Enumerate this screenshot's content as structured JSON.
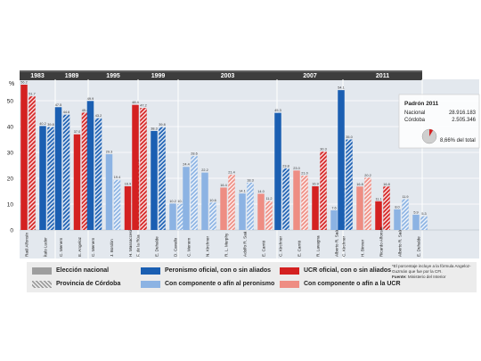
{
  "chart_data": {
    "type": "bar",
    "ylabel": "%",
    "ylim": [
      0,
      60
    ],
    "yticks": [
      0,
      10,
      20,
      30,
      40,
      50
    ],
    "periods": [
      {
        "year": "1983",
        "bars": [
          {
            "label": "Raúl Alfonsín",
            "nacional": 56.2,
            "cordoba": 51.7,
            "color_key": "ucr_oficial"
          },
          {
            "label": "Ítalo Luder",
            "nacional": 40.2,
            "cordoba": 39.8,
            "color_key": "peronismo_oficial"
          }
        ]
      },
      {
        "year": "1989",
        "bars": [
          {
            "label": "C. Menem",
            "nacional": 47.5,
            "cordoba": 44.6,
            "color_key": "peronismo_oficial"
          },
          {
            "label": "E. Angeloz",
            "nacional": 37.0,
            "cordoba": 45.4,
            "color_key": "ucr_oficial"
          }
        ]
      },
      {
        "year": "1995",
        "bars": [
          {
            "label": "C. Menem",
            "nacional": 49.9,
            "cordoba": 43.2,
            "color_key": "peronismo_oficial"
          },
          {
            "label": "J. Bordón",
            "nacional": 29.3,
            "cordoba": 19.4,
            "color_key": "afin_peronismo"
          },
          {
            "label": "H. Massaccesi",
            "nacional": 16.9,
            "cordoba": 25.8,
            "color_key": "ucr_oficial"
          }
        ]
      },
      {
        "year": "1999",
        "bars": [
          {
            "label": "F. de la Rúa",
            "nacional": 48.4,
            "cordoba": 47.2,
            "color_key": "ucr_oficial"
          },
          {
            "label": "E. Duhalde",
            "nacional": 38.3,
            "cordoba": 39.8,
            "color_key": "peronismo_oficial"
          },
          {
            "label": "D. Cavallo",
            "nacional": 10.2,
            "cordoba": 10.1,
            "color_key": "afin_peronismo"
          }
        ]
      },
      {
        "year": "2003",
        "bars": [
          {
            "label": "C. Menem",
            "nacional": 24.4,
            "cordoba": 28.6,
            "color_key": "afin_peronismo"
          },
          {
            "label": "N. Kirchner",
            "nacional": 22.2,
            "cordoba": 10.6,
            "color_key": "afin_peronismo"
          },
          {
            "label": "R. L. Murphy",
            "nacional": 16.4,
            "cordoba": 21.4,
            "color_key": "afin_ucr"
          },
          {
            "label": "Adolfo R. Saá",
            "nacional": 14.1,
            "cordoba": 18.3,
            "color_key": "afin_peronismo"
          },
          {
            "label": "E. Carrió",
            "nacional": 14.0,
            "cordoba": 11.2,
            "color_key": "afin_ucr"
          }
        ]
      },
      {
        "year": "2007",
        "bars": [
          {
            "label": "C. Kirchner",
            "nacional": 45.3,
            "cordoba": 23.8,
            "color_key": "peronismo_oficial"
          },
          {
            "label": "E. Carrió",
            "nacional": 23.0,
            "cordoba": 21.0,
            "color_key": "afin_ucr"
          },
          {
            "label": "R. Lavagna",
            "nacional": 16.9,
            "cordoba": 30.3,
            "color_key": "ucr_oficial"
          },
          {
            "label": "Alberto R. Saá",
            "nacional": 7.6,
            "cordoba": 14.7,
            "color_key": "afin_peronismo"
          }
        ]
      },
      {
        "year": "2011",
        "bars": [
          {
            "label": "C. Kirchner",
            "nacional": 54.1,
            "cordoba": 35.0,
            "color_key": "peronismo_oficial"
          },
          {
            "label": "H. Binner",
            "nacional": 16.8,
            "cordoba": 20.2,
            "color_key": "afin_ucr"
          },
          {
            "label": "Ricardo Alfonsín",
            "nacional": 11.1,
            "cordoba": 16.8,
            "color_key": "ucr_oficial"
          },
          {
            "label": "Alberto R. Saá",
            "nacional": 8.0,
            "cordoba": 11.9,
            "color_key": "afin_peronismo"
          },
          {
            "label": "E. Duhalde",
            "nacional": 5.9,
            "cordoba": 5.3,
            "color_key": "afin_peronismo"
          }
        ]
      }
    ],
    "padron": {
      "title": "Padrón 2011",
      "rows": [
        {
          "label": "Nacional",
          "value": "28.916.183"
        },
        {
          "label": "Córdoba",
          "value": "2.505.346"
        }
      ],
      "pie_percent": 8.66,
      "pie_label": "8,66% del total"
    }
  },
  "colors": {
    "ucr_oficial": "#d42121",
    "peronismo_oficial": "#1b5fb2",
    "afin_peronismo": "#8cb3e3",
    "afin_ucr": "#ee8d83",
    "gray": "#9e9e9e",
    "band": "#3d3d3d",
    "band_shade": "#5f5f5f",
    "plot_bg": "#e3e8ee",
    "grid": "#ffffff"
  },
  "legend": {
    "eleccion_nacional": "Elección nacional",
    "provincia_cordoba": "Provincia de Córdoba",
    "peronismo_oficial": "Peronismo oficial, con o sin aliados",
    "afin_peronismo": "Con componente o afín al peronismo",
    "ucr_oficial": "UCR oficial, con o sin aliados",
    "afin_ucr": "Con componente o afín a la UCR"
  },
  "note": {
    "text": "*El porcentaje incluye a la fórmula Angeloz-Guzmán que fue por la CFI.",
    "source_label": "Fuente:",
    "source": "Ministerio del Interior"
  }
}
